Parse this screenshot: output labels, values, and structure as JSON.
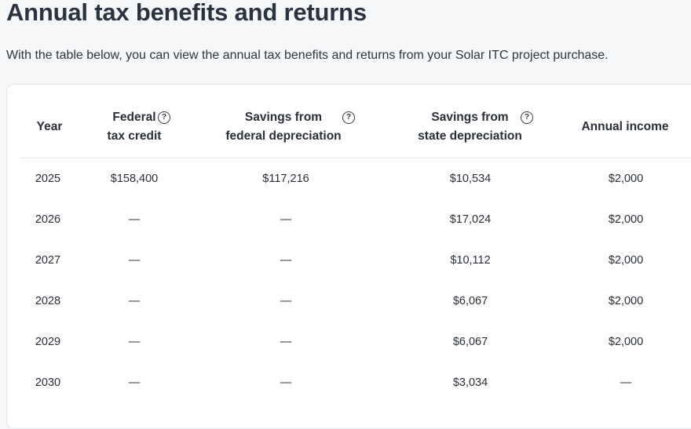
{
  "page": {
    "title": "Annual tax benefits and returns",
    "subtitle": "With the table below, you can view the annual tax benefits and returns from your Solar ITC project purchase."
  },
  "table": {
    "headers": {
      "year": "Year",
      "federal_tax_credit": [
        "Federal",
        "tax credit"
      ],
      "federal_depreciation": [
        "Savings from",
        "federal depreciation"
      ],
      "state_depreciation": [
        "Savings from",
        "state depreciation"
      ],
      "annual_income": "Annual income"
    },
    "help_icon": "question-circle-icon",
    "rows": [
      {
        "year": "2025",
        "federal_tax_credit": "$158,400",
        "federal_depreciation": "$117,216",
        "state_depreciation": "$10,534",
        "annual_income": "$2,000"
      },
      {
        "year": "2026",
        "federal_tax_credit": "—",
        "federal_depreciation": "—",
        "state_depreciation": "$17,024",
        "annual_income": "$2,000"
      },
      {
        "year": "2027",
        "federal_tax_credit": "—",
        "federal_depreciation": "—",
        "state_depreciation": "$10,112",
        "annual_income": "$2,000"
      },
      {
        "year": "2028",
        "federal_tax_credit": "—",
        "federal_depreciation": "—",
        "state_depreciation": "$6,067",
        "annual_income": "$2,000"
      },
      {
        "year": "2029",
        "federal_tax_credit": "—",
        "federal_depreciation": "—",
        "state_depreciation": "$6,067",
        "annual_income": "$2,000"
      },
      {
        "year": "2030",
        "federal_tax_credit": "—",
        "federal_depreciation": "—",
        "state_depreciation": "$3,034",
        "annual_income": "—"
      }
    ]
  }
}
